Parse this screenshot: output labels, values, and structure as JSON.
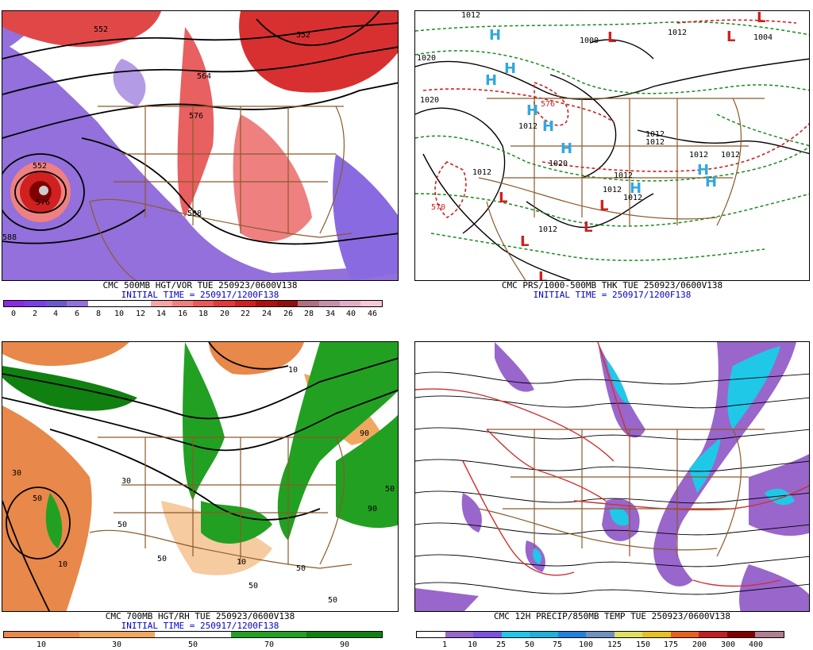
{
  "panels": {
    "p1": {
      "title": "CMC 500MB HGT/VOR TUE 250923/0600V138",
      "init": "INITIAL TIME = 250917/1200F138",
      "scale_labels": [
        "0",
        "2",
        "4",
        "6",
        "8",
        "10",
        "12",
        "14",
        "16",
        "18",
        "20",
        "22",
        "24",
        "26",
        "28",
        "34",
        "40",
        "46"
      ],
      "scale_colors": [
        "#8a2be2",
        "#7b3fe4",
        "#6a5acd",
        "#9370db",
        "#ffffff",
        "#ffffff",
        "#ffffff",
        "#f4a6a6",
        "#ef8080",
        "#e85a5a",
        "#e03a3a",
        "#d02020",
        "#b01010",
        "#901010",
        "#b07080",
        "#c890a8",
        "#e0b0c8",
        "#f8c8d8"
      ],
      "contour_labels": [
        "552",
        "552",
        "564",
        "576",
        "552",
        "576",
        "588",
        "588"
      ]
    },
    "p2": {
      "title": "CMC PRS/1000-500MB THK TUE 250923/0600V138",
      "init": "INITIAL TIME = 250917/1200F138",
      "highs": [
        "H",
        "H",
        "H",
        "H",
        "H",
        "H",
        "H",
        "H",
        "H"
      ],
      "lows": [
        "L",
        "L",
        "L",
        "L",
        "L",
        "L",
        "L",
        "L"
      ],
      "contour_labels": [
        "1012",
        "1000",
        "1012",
        "1004",
        "1020",
        "1020",
        "1012",
        "1020",
        "1012",
        "1012",
        "1012",
        "1012",
        "1012",
        "1012",
        "1012",
        "1012",
        "1012",
        "576",
        "570"
      ]
    },
    "p3": {
      "title": "CMC 700MB HGT/RH TUE 250923/0600V138",
      "init": "INITIAL TIME = 250917/1200F138",
      "scale_labels": [
        "10",
        "30",
        "50",
        "70",
        "90"
      ],
      "scale_colors": [
        "#e8884a",
        "#f0a860",
        "#ffffff",
        "#22a022",
        "#108010"
      ],
      "contour_labels": [
        "30",
        "50",
        "10",
        "50",
        "90",
        "50",
        "50",
        "10",
        "50",
        "50",
        "50",
        "90",
        "30",
        "10"
      ]
    },
    "p4": {
      "title": "CMC 12H PRECIP/850MB TEMP TUE 250923/0600V138",
      "init": "",
      "scale_labels": [
        "1",
        "10",
        "25",
        "50",
        "75",
        "100",
        "125",
        "150",
        "175",
        "200",
        "300",
        "400"
      ],
      "scale_colors": [
        "#ffffff",
        "#9966cc",
        "#7b52e0",
        "#20c8e8",
        "#20b0d8",
        "#2080e0",
        "#7090c0",
        "#e0e060",
        "#e8c020",
        "#e86020",
        "#c02020",
        "#800000",
        "#b08090"
      ]
    }
  }
}
